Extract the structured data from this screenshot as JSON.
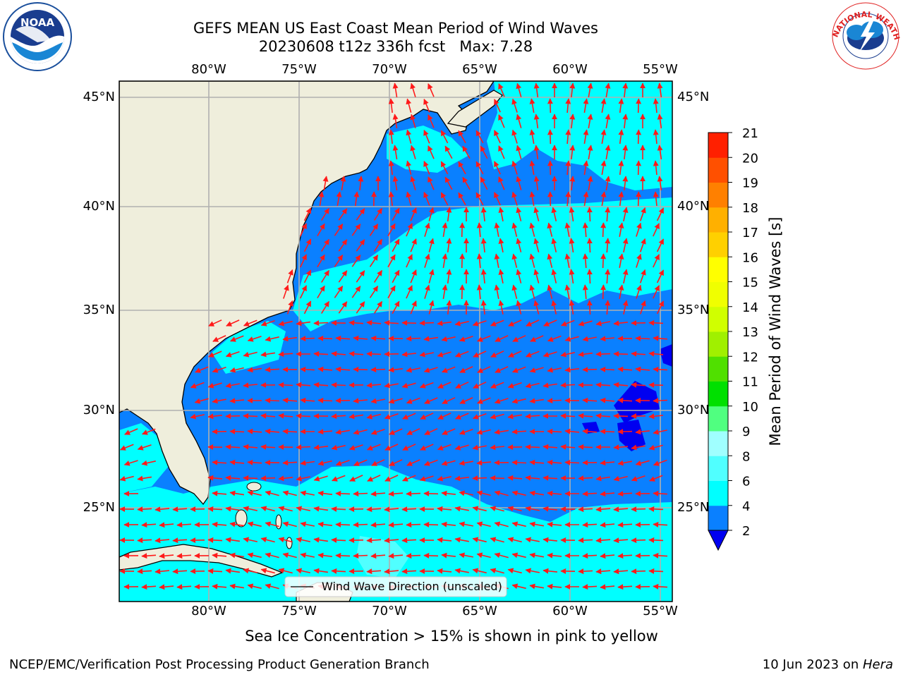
{
  "header": {
    "title_line1": "GEFS MEAN US East Coast Mean Period of Wind Waves",
    "title_line2": "20230608 t12z 336h fcst   Max: 7.28"
  },
  "logos": {
    "left": "noaa-logo",
    "left_text": "NOAA",
    "right": "nws-logo",
    "right_text": "NATIONAL WEATHER SERVICE"
  },
  "map": {
    "lon_labels": [
      "80°W",
      "75°W",
      "70°W",
      "65°W",
      "60°W",
      "55°W"
    ],
    "lat_labels": [
      "45°N",
      "40°N",
      "35°N",
      "30°N",
      "25°N"
    ],
    "colors": {
      "land": "#efeedc",
      "band_2_4": "#0a80ff",
      "band_4_6": "#00ffff",
      "band_6_8": "#50ffff",
      "band_lt_2": "#0000f0",
      "arrow": "#ff1a1a",
      "grid": "#b0b0b0"
    },
    "legend_label": "Wind Wave Direction (unscaled)"
  },
  "colorbar": {
    "label": "Mean Period of Wind Waves [s]",
    "ticks": [
      "2",
      "4",
      "6",
      "8",
      "9",
      "10",
      "11",
      "12",
      "13",
      "14",
      "15",
      "16",
      "17",
      "18",
      "19",
      "20",
      "21"
    ],
    "colors": [
      "#0a80ff",
      "#00ffff",
      "#50ffff",
      "#a0ffff",
      "#50ff80",
      "#00e000",
      "#50e000",
      "#a0f000",
      "#d0ff00",
      "#f0ff00",
      "#ffff00",
      "#ffd000",
      "#ffb000",
      "#ff8000",
      "#ff5000",
      "#ff2000",
      "#ff0000"
    ],
    "extend_color": "#0000f0"
  },
  "notes": {
    "sea_ice": "Sea Ice Concentration > 15% is shown in pink to yellow"
  },
  "footer": {
    "left": "NCEP/EMC/Verification Post Processing Product Generation Branch",
    "right_date": "10 Jun 2023 on ",
    "right_host": "Hera"
  }
}
